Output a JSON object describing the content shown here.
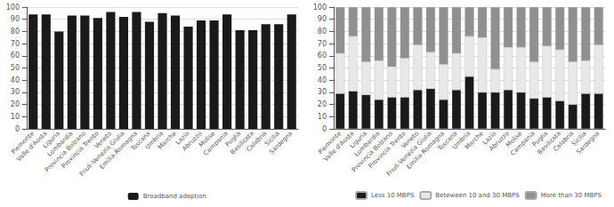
{
  "chart_data": [
    {
      "type": "bar",
      "categories": [
        "Piemonte",
        "Valle d'Aosta",
        "Liguria",
        "Lombardia",
        "Provincia Bolzano",
        "Provincia Trento",
        "Veneto",
        "Friuli-Venezia Giulia",
        "Emilia-Romagna",
        "Toscana",
        "Umbria",
        "Marche",
        "Lazio",
        "Abruzzo",
        "Molise",
        "Campania",
        "Puglia",
        "Basilicata",
        "Calabria",
        "Sicilia",
        "Sardegna"
      ],
      "series": [
        {
          "name": "Broadband adoption",
          "color": "#1a1a1a",
          "values": [
            94,
            94,
            80,
            93,
            93,
            91,
            96,
            92,
            96,
            88,
            95,
            93,
            84,
            89,
            89,
            94,
            81,
            81,
            86,
            86,
            94
          ]
        }
      ],
      "ylim": [
        0,
        100
      ],
      "yticks": [
        0,
        10,
        20,
        30,
        40,
        50,
        60,
        70,
        80,
        90,
        100
      ],
      "grid": true,
      "legend": "bottom"
    },
    {
      "type": "bar",
      "categories": [
        "Piemonte",
        "Valle d'Aosta",
        "Liguria",
        "Lombardia",
        "Provincia Bolzano",
        "Provincia Trento",
        "Veneto",
        "Friuli-Venezia Giulia",
        "Emilia-Romagna",
        "Toscana",
        "Umbria",
        "Marche",
        "Lazio",
        "Abruzzo",
        "Molise",
        "Campania",
        "Puglia",
        "Basilicata",
        "Calabria",
        "Sicilia",
        "Sardegna"
      ],
      "series": [
        {
          "name": "Less 10 MBPS",
          "color": "#1a1a1a",
          "values": [
            29,
            31,
            28,
            24,
            26,
            26,
            32,
            33,
            24,
            32,
            43,
            30,
            30,
            32,
            30,
            25,
            26,
            23,
            20,
            29,
            29
          ]
        },
        {
          "name": "Beteween 10 and 30 MBPS",
          "color": "#e8e8e8",
          "values": [
            33,
            45,
            27,
            32,
            25,
            32,
            37,
            30,
            29,
            30,
            33,
            45,
            19,
            35,
            37,
            30,
            42,
            42,
            35,
            27,
            40
          ]
        },
        {
          "name": "More than 30 MBPS",
          "color": "#909090",
          "values": [
            38,
            24,
            45,
            44,
            49,
            42,
            31,
            37,
            47,
            38,
            24,
            25,
            51,
            33,
            33,
            45,
            32,
            35,
            45,
            44,
            31
          ]
        }
      ],
      "stacked": true,
      "ylim": [
        0,
        100
      ],
      "yticks": [
        0,
        10,
        20,
        30,
        40,
        50,
        60,
        70,
        80,
        90,
        100
      ],
      "grid": true,
      "legend": "bottom"
    }
  ]
}
